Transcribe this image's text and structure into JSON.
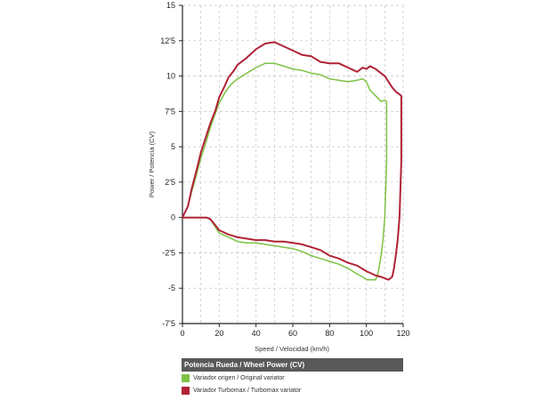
{
  "chart_data": {
    "type": "line",
    "xlabel": "Speed / Velocidad (km/h)",
    "ylabel": "Power / Potencia (CV)",
    "xlim": [
      0,
      120
    ],
    "ylim": [
      -7.5,
      15
    ],
    "x_ticks": [
      "0",
      "20",
      "40",
      "60",
      "80",
      "100",
      "120"
    ],
    "y_ticks": [
      "15",
      "12'5",
      "10",
      "7'5",
      "5",
      "2'5",
      "0",
      "-2'5",
      "-5",
      "-7'5"
    ],
    "grid": true,
    "legend_title": "Potencia Rueda / Wheel Power (CV)",
    "legend_position": "bottom",
    "series": [
      {
        "name": "Variador origen / Original variator",
        "color": "#7dc243",
        "x": [
          0,
          3,
          5,
          8,
          10,
          13,
          15,
          18,
          20,
          23,
          25,
          28,
          30,
          35,
          40,
          45,
          50,
          55,
          60,
          65,
          70,
          75,
          80,
          85,
          90,
          95,
          98,
          100,
          102,
          105,
          108,
          110,
          111,
          111,
          110,
          109,
          108,
          107,
          106,
          105,
          103,
          100,
          98,
          95,
          90,
          85,
          80,
          75,
          70,
          65,
          60,
          55,
          50,
          45,
          40,
          35,
          30,
          25,
          20,
          17,
          15,
          13,
          10,
          5,
          0
        ],
        "y": [
          0,
          0.8,
          1.8,
          3.2,
          4.2,
          5.4,
          6.3,
          7.4,
          8.1,
          8.8,
          9.2,
          9.6,
          9.8,
          10.2,
          10.6,
          10.9,
          10.9,
          10.7,
          10.5,
          10.4,
          10.2,
          10.1,
          9.8,
          9.7,
          9.6,
          9.7,
          9.8,
          9.6,
          9.0,
          8.6,
          8.2,
          8.3,
          8.2,
          4.0,
          0.0,
          -1.6,
          -2.7,
          -3.5,
          -4.1,
          -4.4,
          -4.4,
          -4.4,
          -4.2,
          -4.0,
          -3.6,
          -3.3,
          -3.1,
          -2.9,
          -2.7,
          -2.4,
          -2.2,
          -2.1,
          -2.0,
          -1.9,
          -1.8,
          -1.8,
          -1.7,
          -1.4,
          -1.1,
          -0.5,
          -0.1,
          0.0,
          0.0,
          0.0,
          0.0
        ]
      },
      {
        "name": "Variador Turbomax / Turbomax variator",
        "color": "#b02237",
        "x": [
          0,
          3,
          5,
          8,
          10,
          13,
          15,
          18,
          20,
          23,
          25,
          28,
          30,
          35,
          40,
          45,
          50,
          55,
          60,
          65,
          70,
          75,
          80,
          85,
          90,
          95,
          98,
          100,
          102,
          105,
          108,
          110,
          112,
          114,
          116,
          118,
          119,
          119,
          118,
          117,
          116,
          115,
          114,
          112,
          110,
          108,
          105,
          100,
          95,
          90,
          85,
          80,
          75,
          70,
          65,
          60,
          55,
          50,
          45,
          40,
          35,
          30,
          25,
          20,
          17,
          15,
          13,
          10,
          5,
          0
        ],
        "y": [
          0,
          0.8,
          2.0,
          3.5,
          4.6,
          5.8,
          6.6,
          7.6,
          8.5,
          9.3,
          9.9,
          10.4,
          10.8,
          11.3,
          11.9,
          12.3,
          12.4,
          12.1,
          11.8,
          11.5,
          11.4,
          11.0,
          10.9,
          10.9,
          10.6,
          10.3,
          10.6,
          10.5,
          10.7,
          10.5,
          10.2,
          10.0,
          9.6,
          9.2,
          8.9,
          8.7,
          8.6,
          4.0,
          0.0,
          -1.6,
          -2.7,
          -3.6,
          -4.2,
          -4.4,
          -4.3,
          -4.2,
          -4.1,
          -3.8,
          -3.4,
          -3.2,
          -2.9,
          -2.7,
          -2.3,
          -2.1,
          -1.9,
          -1.8,
          -1.7,
          -1.7,
          -1.6,
          -1.6,
          -1.5,
          -1.4,
          -1.2,
          -0.9,
          -0.4,
          -0.1,
          0.0,
          0.0,
          0.0,
          0.0
        ]
      }
    ]
  }
}
